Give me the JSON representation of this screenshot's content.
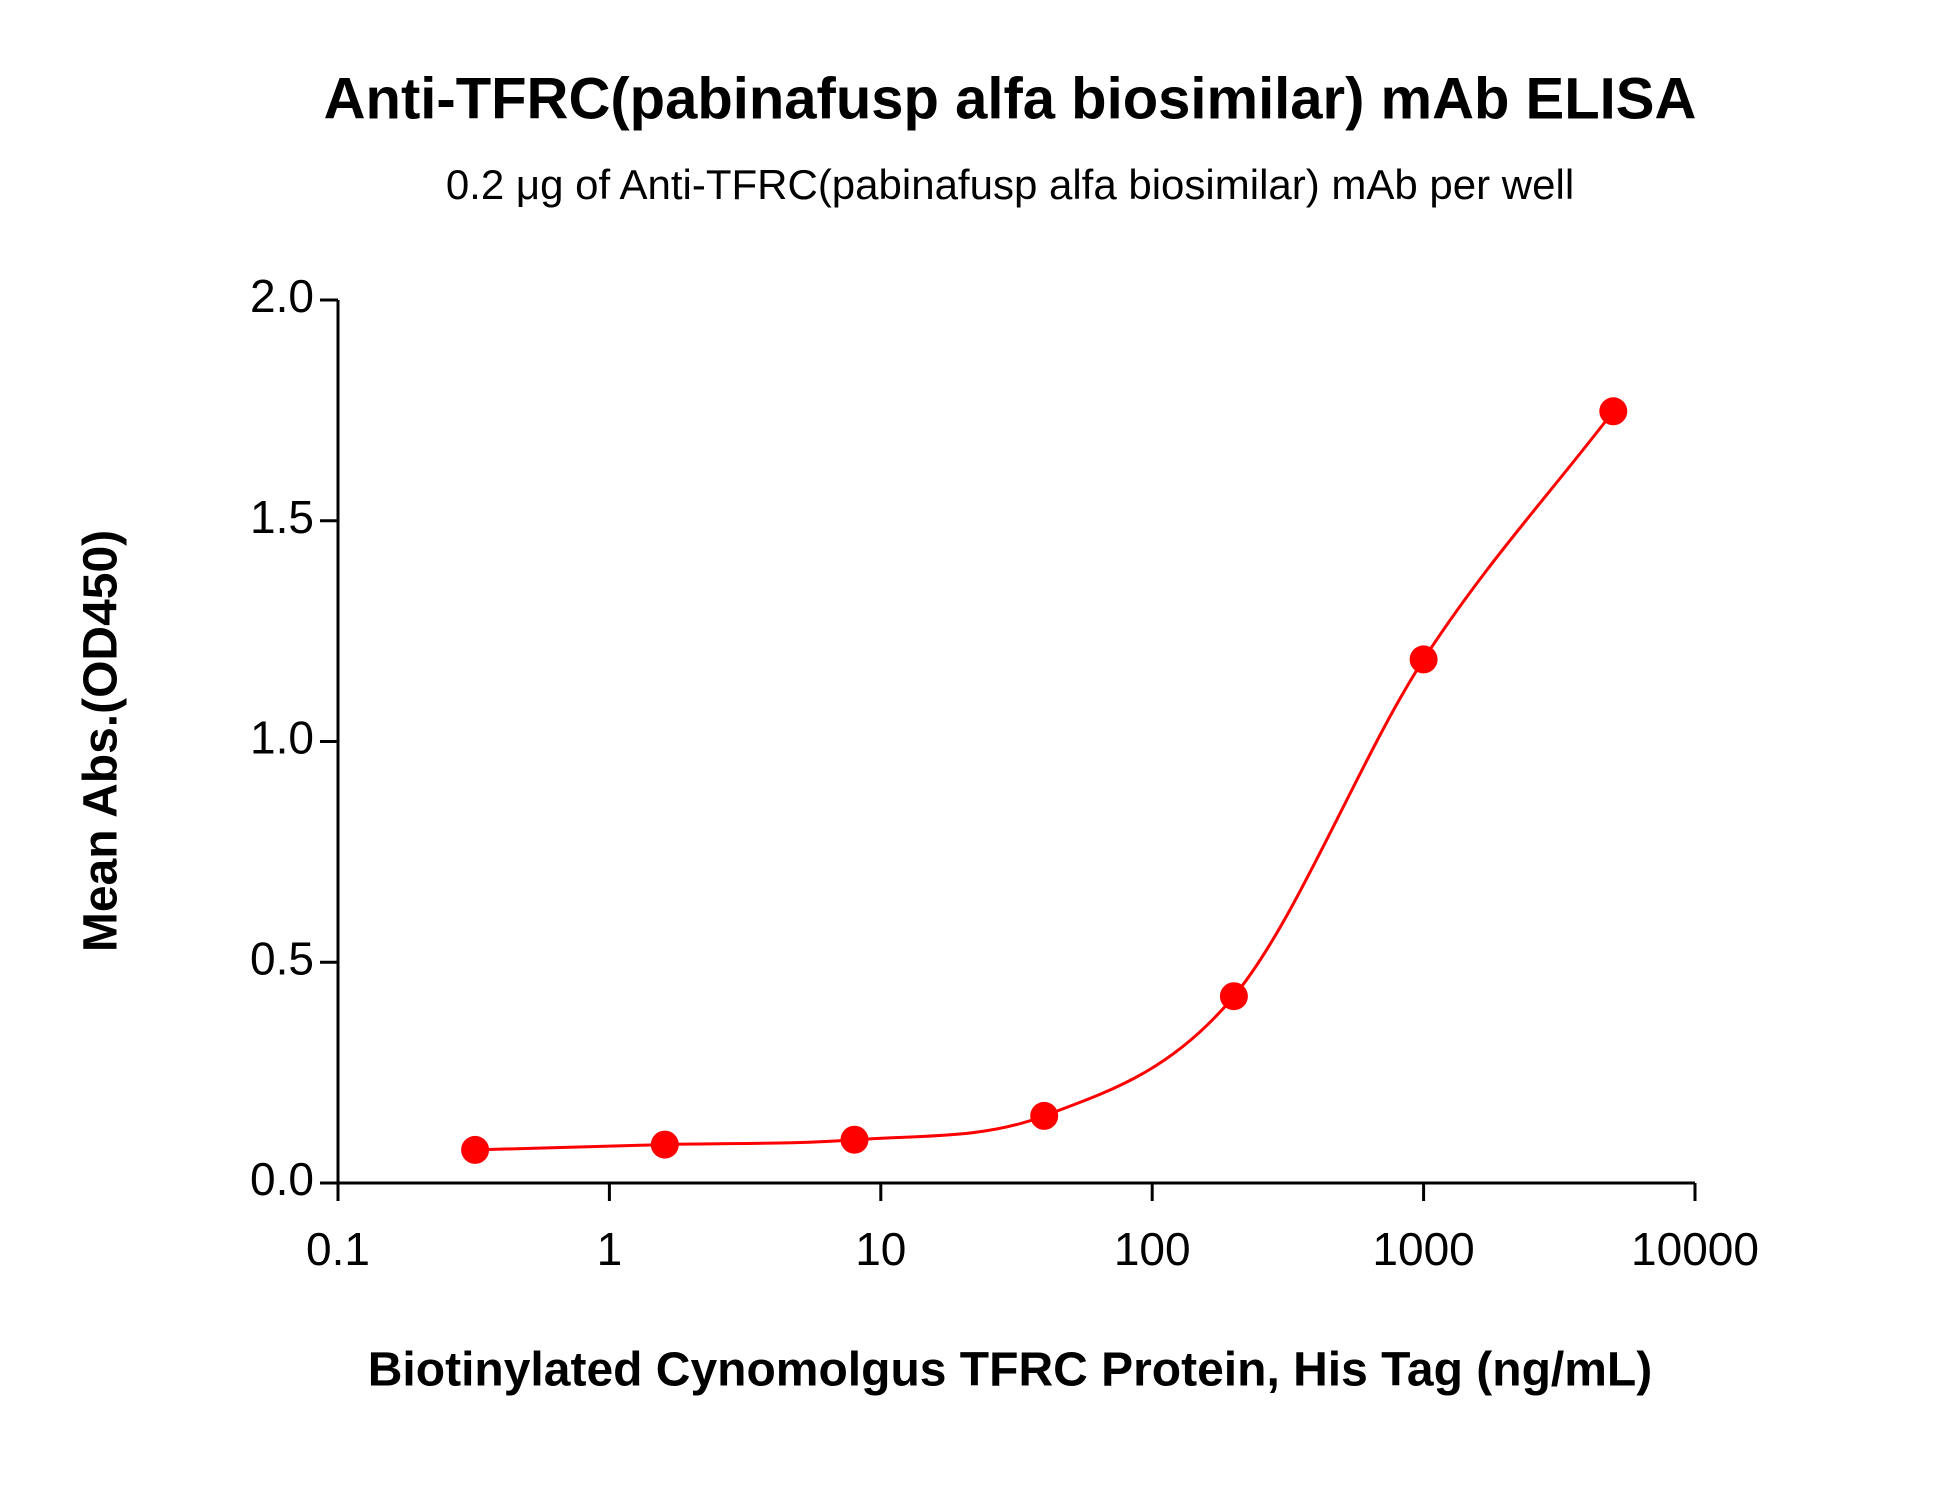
{
  "chart_data": {
    "type": "scatter",
    "title": "Anti-TFRC(pabinafusp alfa biosimilar) mAb ELISA",
    "subtitle": "0.2 μg of Anti-TFRC(pabinafusp alfa biosimilar) mAb per well",
    "x_label": "Biotinylated Cynomolgus TFRC Protein, His Tag (ng/mL)",
    "y_label": "Mean Abs.(OD450)",
    "x_log": true,
    "xlim": [
      0.1,
      10000
    ],
    "xticks": [
      0.1,
      1,
      10,
      100,
      1000,
      10000
    ],
    "ylim": [
      0,
      2
    ],
    "yticks": [
      {
        "value": 0,
        "label": "0.0"
      },
      0.5,
      {
        "value": 1,
        "label": "1.0"
      },
      1.5,
      {
        "value": 2,
        "label": "2.0"
      }
    ],
    "series": [
      {
        "color": "#ff0000",
        "x": [
          0.32,
          1.6,
          8,
          40,
          200,
          1000,
          5000
        ],
        "values": [
          0.075,
          0.087,
          0.098,
          0.152,
          0.423,
          1.186,
          1.748
        ]
      }
    ]
  }
}
